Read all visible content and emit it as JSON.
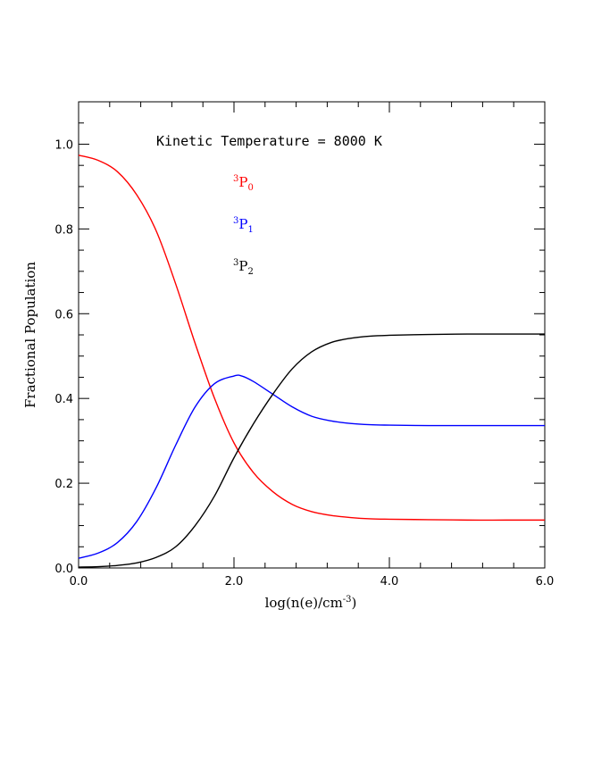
{
  "chart_data": {
    "type": "line",
    "title": "",
    "xlabel": "log(n(e)/cm",
    "xlabel_sup": "-3",
    "xlabel_tail": ")",
    "ylabel": "Fractional Population",
    "xlim": [
      0,
      6
    ],
    "ylim": [
      0,
      1.1
    ],
    "x_ticks": [
      0,
      2,
      4,
      6
    ],
    "x_tick_labels": [
      "0.0",
      "2.0",
      "4.0",
      "6.0"
    ],
    "y_ticks": [
      0,
      0.2,
      0.4,
      0.6,
      0.8,
      1.0
    ],
    "y_tick_labels": [
      "0.0",
      "0.2",
      "0.4",
      "0.6",
      "0.8",
      "1.0"
    ],
    "grid": false,
    "annotation": "Kinetic Temperature = 8000 K",
    "series": [
      {
        "name": "3P0",
        "sup": "3",
        "base": "P",
        "sub": "0",
        "color": "#ff0000",
        "x": [
          0.0,
          0.25,
          0.5,
          0.75,
          1.0,
          1.25,
          1.5,
          1.75,
          2.0,
          2.25,
          2.5,
          2.75,
          3.0,
          3.25,
          3.5,
          3.75,
          4.0,
          4.5,
          5.0,
          5.5,
          6.0
        ],
        "y": [
          0.974,
          0.962,
          0.935,
          0.88,
          0.795,
          0.67,
          0.53,
          0.4,
          0.295,
          0.225,
          0.18,
          0.15,
          0.133,
          0.124,
          0.119,
          0.116,
          0.115,
          0.114,
          0.113,
          0.113,
          0.113
        ]
      },
      {
        "name": "3P1",
        "sup": "3",
        "base": "P",
        "sub": "1",
        "color": "#0000ff",
        "x": [
          0.0,
          0.25,
          0.5,
          0.75,
          1.0,
          1.25,
          1.5,
          1.75,
          2.0,
          2.1,
          2.25,
          2.5,
          2.75,
          3.0,
          3.25,
          3.5,
          3.75,
          4.0,
          4.5,
          5.0,
          5.5,
          6.0
        ],
        "y": [
          0.023,
          0.035,
          0.06,
          0.11,
          0.19,
          0.29,
          0.38,
          0.435,
          0.453,
          0.453,
          0.44,
          0.41,
          0.38,
          0.358,
          0.347,
          0.341,
          0.338,
          0.337,
          0.336,
          0.336,
          0.336,
          0.336
        ]
      },
      {
        "name": "3P2",
        "sup": "3",
        "base": "P",
        "sub": "2",
        "color": "#000000",
        "x": [
          0.0,
          0.25,
          0.5,
          0.75,
          1.0,
          1.25,
          1.5,
          1.75,
          2.0,
          2.25,
          2.5,
          2.75,
          3.0,
          3.25,
          3.5,
          3.75,
          4.0,
          4.5,
          5.0,
          5.5,
          6.0
        ],
        "y": [
          0.002,
          0.003,
          0.006,
          0.012,
          0.025,
          0.05,
          0.1,
          0.17,
          0.26,
          0.34,
          0.41,
          0.47,
          0.51,
          0.532,
          0.542,
          0.547,
          0.549,
          0.551,
          0.552,
          0.552,
          0.552
        ]
      }
    ]
  }
}
